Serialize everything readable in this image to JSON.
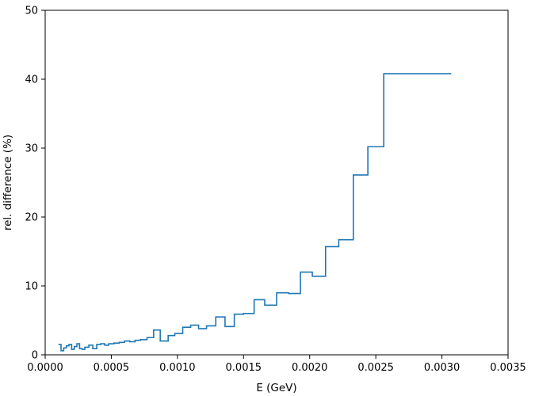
{
  "chart_data": {
    "type": "line",
    "drawstyle": "steps-post",
    "xlabel": "E (GeV)",
    "ylabel": "rel. difference (%)",
    "xlim": [
      0.0,
      0.0035
    ],
    "ylim": [
      0,
      50
    ],
    "x_ticks": [
      "0.0000",
      "0.0005",
      "0.0010",
      "0.0015",
      "0.0020",
      "0.0025",
      "0.0030",
      "0.0035"
    ],
    "x_tick_values": [
      0.0,
      0.0005,
      0.001,
      0.0015,
      0.002,
      0.0025,
      0.003,
      0.0035
    ],
    "y_ticks": [
      "0",
      "10",
      "20",
      "30",
      "40",
      "50"
    ],
    "y_tick_values": [
      0,
      10,
      20,
      30,
      40,
      50
    ],
    "grid": false,
    "line_color": "#1f77b4",
    "series": [
      {
        "x": [
          0.0001,
          0.00012,
          0.00014,
          0.00016,
          0.00018,
          0.0002,
          0.00022,
          0.00024,
          0.00026,
          0.00028,
          0.0003,
          0.00033,
          0.00036,
          0.00039,
          0.00042,
          0.00045,
          0.00048,
          0.00052,
          0.00056,
          0.0006,
          0.00064,
          0.00068,
          0.00072,
          0.00077,
          0.00082,
          0.00087,
          0.00093,
          0.00098,
          0.00104,
          0.0011,
          0.00116,
          0.00122,
          0.00129,
          0.00136,
          0.00143,
          0.0015,
          0.00158,
          0.00166,
          0.00175,
          0.00184,
          0.00193,
          0.00202,
          0.00212,
          0.00222,
          0.00233,
          0.00244,
          0.00256,
          0.00268,
          0.0028,
          0.00293,
          0.00307
        ],
        "values": [
          1.5,
          0.6,
          1.0,
          1.3,
          1.5,
          0.8,
          1.2,
          1.6,
          0.9,
          0.8,
          1.1,
          1.4,
          0.9,
          1.5,
          1.6,
          1.4,
          1.6,
          1.7,
          1.8,
          2.0,
          1.9,
          2.1,
          2.2,
          2.5,
          3.6,
          2.0,
          2.8,
          3.1,
          4.0,
          4.3,
          3.8,
          4.2,
          5.5,
          4.1,
          5.9,
          6.0,
          8.0,
          7.2,
          9.0,
          8.9,
          12.0,
          11.4,
          15.7,
          16.7,
          26.1,
          30.2,
          40.8,
          40.8,
          40.8,
          40.8,
          40.8
        ]
      }
    ]
  }
}
